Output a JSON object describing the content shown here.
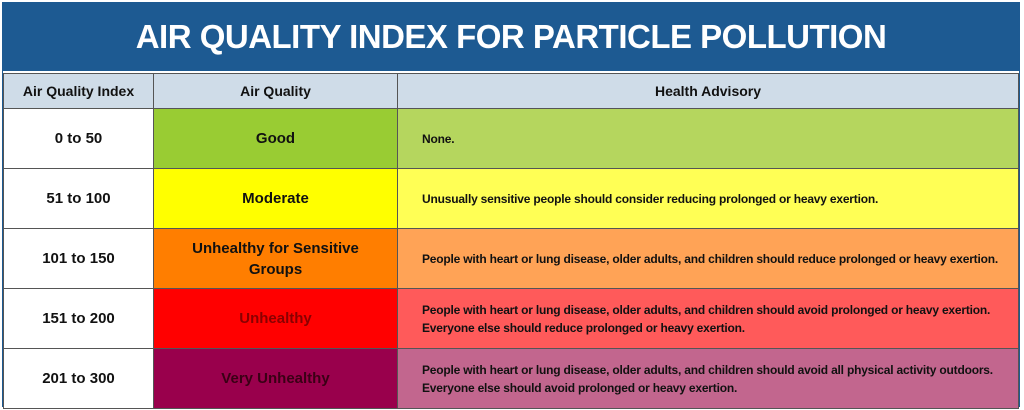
{
  "header": {
    "title": "AIR QUALITY INDEX FOR PARTICLE POLLUTION"
  },
  "table": {
    "columns": [
      "Air Quality Index",
      "Air Quality",
      "Health Advisory"
    ],
    "rows": [
      [
        "0 to 50",
        "Good",
        "None."
      ],
      [
        "51 to 100",
        "Moderate",
        "Unusually sensitive people should consider reducing prolonged or heavy exertion."
      ],
      [
        "101 to 150",
        "Unhealthy for Sensitive Groups",
        "People with heart or lung disease, older adults, and children should reduce prolonged or heavy exertion."
      ],
      [
        "151 to 200",
        "Unhealthy",
        "People with heart or lung disease, older adults, and children should avoid prolonged or heavy exertion. Everyone else should reduce prolonged or heavy exertion."
      ],
      [
        "201 to 300",
        "Very Unhealthy",
        "People with heart or lung disease, older adults, and children should avoid all physical activity outdoors. Everyone else should avoid prolonged or heavy exertion."
      ]
    ]
  }
}
